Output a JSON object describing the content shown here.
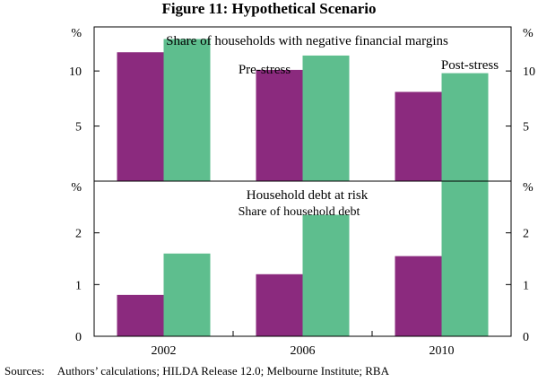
{
  "figure": {
    "title": "Figure 11: Hypothetical Scenario",
    "sources_label": "Sources:",
    "sources_text": "Authors’ calculations; HILDA Release 12.0; Melbourne Institute; RBA"
  },
  "colors": {
    "pre_stress": "#8B2A7E",
    "post_stress": "#5EBE8E",
    "axis": "#000000"
  },
  "chart_data": [
    {
      "type": "bar",
      "title": "Share of households with negative financial margins",
      "subtitle": "",
      "categories": [
        "2002",
        "2006",
        "2010"
      ],
      "series": [
        {
          "name": "Pre-stress",
          "values": [
            11.7,
            10.1,
            8.1
          ]
        },
        {
          "name": "Post-stress",
          "values": [
            12.9,
            11.4,
            9.8
          ]
        }
      ],
      "unit": "%",
      "ylim": [
        0,
        14
      ],
      "yticks": [
        5,
        10
      ],
      "xlabel": "",
      "ylabel": "%"
    },
    {
      "type": "bar",
      "title": "Household debt at risk",
      "subtitle": "Share of household debt",
      "categories": [
        "2002",
        "2006",
        "2010"
      ],
      "series": [
        {
          "name": "Pre-stress",
          "values": [
            0.8,
            1.2,
            1.55
          ]
        },
        {
          "name": "Post-stress",
          "values": [
            1.6,
            2.35,
            3.0
          ]
        }
      ],
      "unit": "%",
      "ylim": [
        0,
        3
      ],
      "yticks": [
        0,
        1,
        2
      ],
      "xlabel": "",
      "ylabel": "%"
    }
  ]
}
